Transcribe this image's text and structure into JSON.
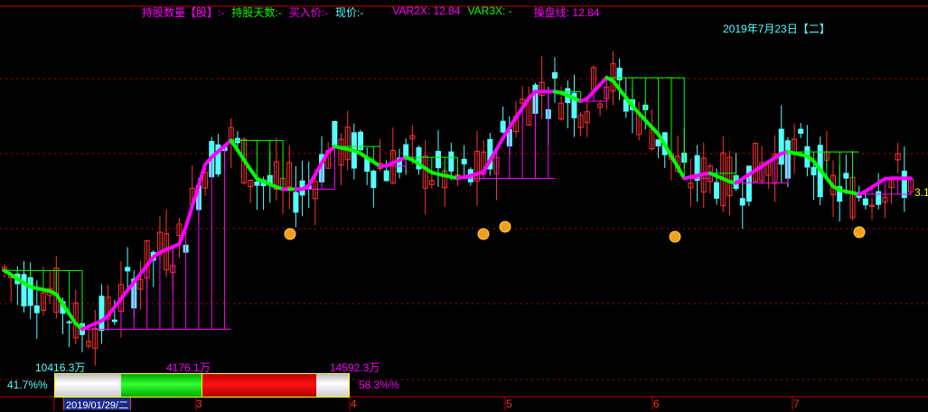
{
  "header": {
    "hold_qty_label": "持股数量【股】:",
    "hold_qty_value": "-",
    "hold_days_label": "持股天数:",
    "hold_days_value": "-",
    "buy_price_label": "买入价:",
    "buy_price_value": "-",
    "cur_price_label": "现价:",
    "cur_price_value": "-",
    "var2x": "VAR2X: 12.84",
    "var3x": "VAR3X: -",
    "trade_line": "操盘线: 12.84",
    "date": "2019年7月23日【二】"
  },
  "labels": {
    "left_amount": "10416.3万",
    "mid_amount": "4176.1万",
    "right_amount": "14592.3万",
    "right_price": "3.1",
    "left_pct": "41.7%%",
    "right_pct": "58.3%%"
  },
  "axis": {
    "cursor_date": "2019/01/29/二",
    "months": [
      "3",
      "4",
      "5",
      "6",
      "7"
    ]
  },
  "bar": {
    "white_left": 0.22,
    "green": 0.28,
    "red": 0.39,
    "white_right": 0.11
  },
  "colors": {
    "up": "#ff3232",
    "down": "#54ffff",
    "trend_up": "#ff00ff",
    "trend_down": "#00ff00",
    "signal": "#ffff00",
    "grid": "#c00000"
  },
  "chart_data": {
    "type": "candlestick",
    "trend_line": [
      11.4,
      11.1,
      11.0,
      10.3,
      10.5,
      11.1,
      11.7,
      11.9,
      13.4,
      13.8,
      13.1,
      12.9,
      12.9,
      13.7,
      13.6,
      13.3,
      13.5,
      13.2,
      13.1,
      13.2,
      14.0,
      14.7,
      14.7,
      14.5,
      15.0,
      14.4,
      13.9,
      13.1,
      13.2,
      13.0,
      13.3,
      13.6,
      13.5,
      12.9,
      12.8,
      13.1,
      13.1
    ]
  }
}
